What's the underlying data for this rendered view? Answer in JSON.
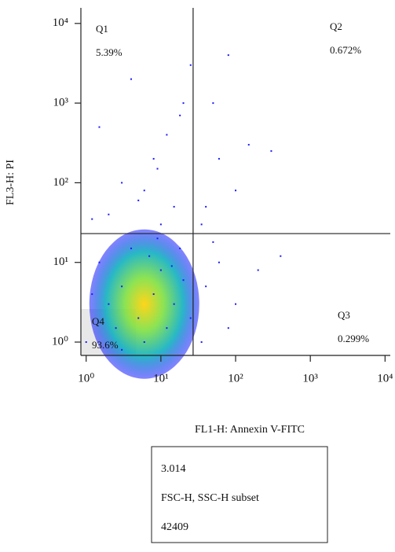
{
  "chart_data": {
    "type": "scatter",
    "x_label": "FL1-H: Annexin V-FITC",
    "y_label": "FL3-H: PI",
    "log_x": true,
    "log_y": true,
    "xlim": [
      0.85,
      11750
    ],
    "ylim": [
      0.68,
      14000
    ],
    "xticks": [
      {
        "value": 1,
        "label": "10⁰"
      },
      {
        "value": 10,
        "label": "10¹"
      },
      {
        "value": 100,
        "label": "10²"
      },
      {
        "value": 1000,
        "label": "10³"
      },
      {
        "value": 10000,
        "label": "10⁴"
      }
    ],
    "yticks": [
      {
        "value": 1,
        "label": "10⁰"
      },
      {
        "value": 10,
        "label": "10¹"
      },
      {
        "value": 100,
        "label": "10²"
      },
      {
        "value": 1000,
        "label": "10³"
      },
      {
        "value": 10000,
        "label": "10⁴"
      }
    ],
    "gate": {
      "x": 27,
      "y": 23
    },
    "quadrants": [
      {
        "name": "Q1",
        "value": 5.39,
        "value_label": "5.39%"
      },
      {
        "name": "Q2",
        "value": 0.672,
        "value_label": "0.672%"
      },
      {
        "name": "Q3",
        "value": 0.299,
        "value_label": "0.299%"
      },
      {
        "name": "Q4",
        "value": 93.6,
        "value_label": "93.6%"
      }
    ],
    "color": "#1a1aff",
    "density_peak": {
      "x": 6,
      "y": 3
    },
    "x": [
      1,
      2,
      3,
      5,
      8,
      10,
      15,
      20,
      1.5,
      4,
      6,
      12,
      25,
      7,
      3,
      18,
      1.2,
      9,
      2.5,
      14,
      2,
      5,
      10,
      3,
      8,
      15,
      1.5,
      20,
      6,
      12,
      4,
      25,
      1.2,
      9,
      18,
      40,
      60,
      100,
      50,
      150,
      300,
      80,
      35,
      40,
      60,
      100,
      200,
      35,
      80,
      400,
      50
    ],
    "y": [
      1,
      3,
      5,
      2,
      4,
      8,
      3,
      6,
      10,
      15,
      1,
      1.5,
      2,
      12,
      0.8,
      15,
      4,
      20,
      1.5,
      9,
      40,
      60,
      30,
      100,
      200,
      50,
      500,
      1000,
      80,
      400,
      2000,
      3000,
      35,
      150,
      700,
      50,
      200,
      80,
      1000,
      300,
      250,
      4000,
      30,
      5,
      10,
      3,
      8,
      1,
      1.5,
      12,
      18
    ],
    "info_box": [
      "3.014",
      "FSC-H, SSC-H subset",
      "42409"
    ]
  }
}
